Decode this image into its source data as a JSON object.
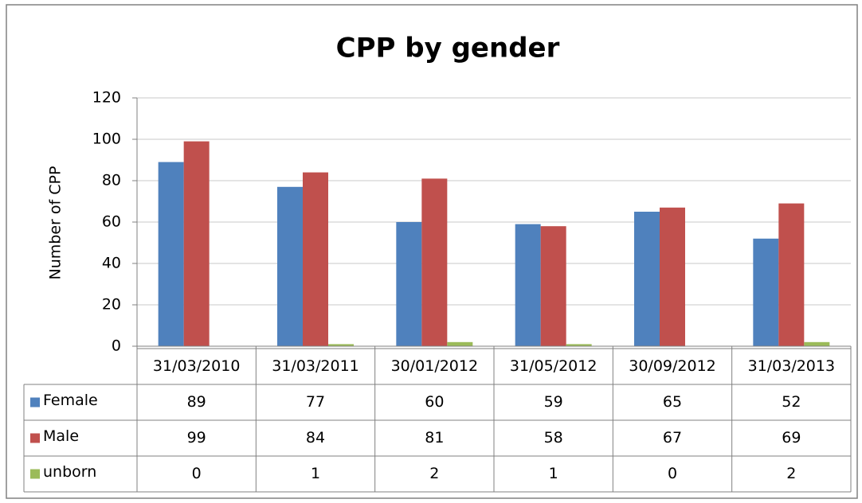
{
  "chart_data": {
    "type": "bar",
    "title": "CPP by gender",
    "y_label": "Number of CPP",
    "categories": [
      "31/03/2010",
      "31/03/2011",
      "30/01/2012",
      "31/05/2012",
      "30/09/2012",
      "31/03/2013"
    ],
    "series": [
      {
        "name": "Female",
        "color": "#4f81bd",
        "values": [
          89,
          77,
          60,
          59,
          65,
          52
        ]
      },
      {
        "name": "Male",
        "color": "#c0504d",
        "values": [
          99,
          84,
          81,
          58,
          67,
          69
        ]
      },
      {
        "name": "unborn",
        "color": "#9bbb59",
        "values": [
          0,
          1,
          2,
          1,
          0,
          2
        ]
      }
    ],
    "ylim": [
      0,
      120
    ],
    "yticks": [
      0,
      20,
      40,
      60,
      80,
      100,
      120
    ],
    "grid": true,
    "data_table": true
  }
}
